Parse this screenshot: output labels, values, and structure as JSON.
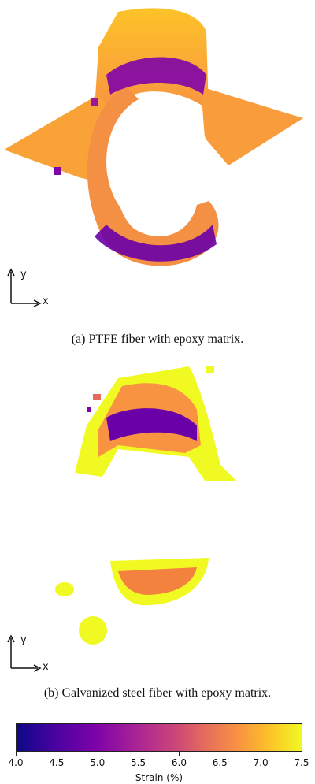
{
  "panels": [
    {
      "caption": "(a) PTFE fiber with epoxy matrix.",
      "axis_y": "y",
      "axis_x": "x"
    },
    {
      "caption": "(b) Galvanized steel fiber with epoxy matrix.",
      "axis_y": "y",
      "axis_x": "x"
    }
  ],
  "colorbar": {
    "title": "Strain (%)",
    "ticks": [
      "4.0",
      "4.5",
      "5.0",
      "5.5",
      "6.0",
      "6.5",
      "7.0",
      "7.5"
    ],
    "min": 4.0,
    "max": 7.5,
    "colormap": "plasma"
  }
}
